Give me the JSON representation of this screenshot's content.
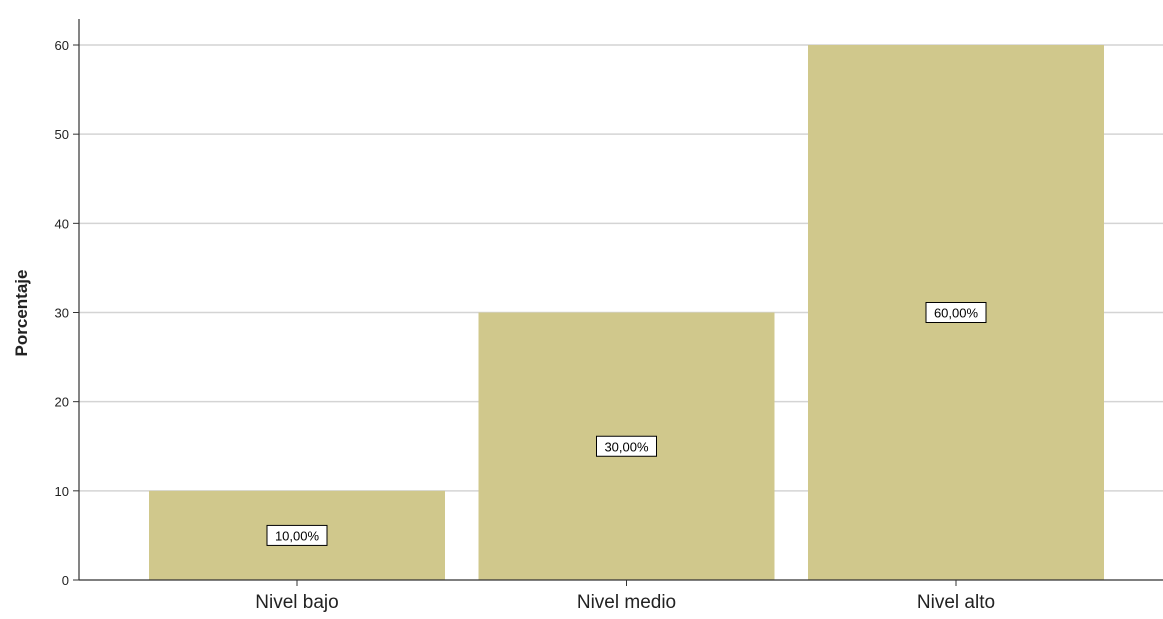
{
  "chart_data": {
    "type": "bar",
    "categories": [
      "Nivel bajo",
      "Nivel medio",
      "Nivel alto"
    ],
    "values": [
      10,
      30,
      60
    ],
    "data_labels": [
      "10,00%",
      "30,00%",
      "60,00%"
    ],
    "ylabel": "Porcentaje",
    "xlabel": "",
    "ylim": [
      0,
      60
    ],
    "yticks": [
      0,
      10,
      20,
      30,
      40,
      50,
      60
    ],
    "grid": true,
    "legend": "none"
  },
  "colors": {
    "bar": "#d0c88c",
    "grid": "#d4d4d4",
    "axis": "#333333",
    "text": "#222222"
  }
}
